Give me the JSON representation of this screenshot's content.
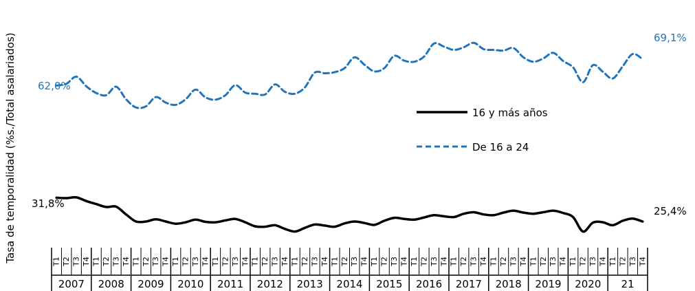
{
  "chart_data": {
    "type": "line",
    "ylabel": "Tasa de temporalidad (%s./Total asalariados)",
    "quarter_labels": [
      "T1",
      "T2",
      "T3",
      "T4"
    ],
    "years": [
      "2007",
      "2008",
      "2009",
      "2010",
      "2011",
      "2012",
      "2013",
      "2014",
      "2015",
      "2016",
      "2017",
      "2018",
      "2019",
      "2020",
      "21"
    ],
    "ylim": [
      0,
      90
    ],
    "grid": false,
    "legend_position": "right-middle",
    "series": [
      {
        "name": "16 y más años",
        "color": "#000000",
        "style": "solid",
        "start_label": "31,8%",
        "end_label": "25,4%",
        "values": [
          31.8,
          31.7,
          31.9,
          30.9,
          30.1,
          29.3,
          29.4,
          27.3,
          25.4,
          25.4,
          26.0,
          25.4,
          24.8,
          25.2,
          25.9,
          25.3,
          25.2,
          25.7,
          26.1,
          25.2,
          24.1,
          24.0,
          24.4,
          23.4,
          22.7,
          23.7,
          24.6,
          24.3,
          24.0,
          24.9,
          25.4,
          25.0,
          24.5,
          25.6,
          26.4,
          26.1,
          25.9,
          26.5,
          27.1,
          26.8,
          26.6,
          27.5,
          27.9,
          27.3,
          27.1,
          27.8,
          28.3,
          27.8,
          27.5,
          27.9,
          28.3,
          27.7,
          26.6,
          22.7,
          25.1,
          25.2,
          24.4,
          25.6,
          26.2,
          25.4
        ]
      },
      {
        "name": "De 16 a 24",
        "color": "#1f75bd",
        "style": "dashed",
        "start_label": "62,0%",
        "end_label": "69,1%",
        "values": [
          62.0,
          62.5,
          64.4,
          61.8,
          60.0,
          59.4,
          61.7,
          58.3,
          56.1,
          56.4,
          58.9,
          57.4,
          56.8,
          58.3,
          60.9,
          58.8,
          58.2,
          59.4,
          62.1,
          60.1,
          59.8,
          59.6,
          62.3,
          60.3,
          59.8,
          61.5,
          65.5,
          65.3,
          65.6,
          66.7,
          69.6,
          67.6,
          65.8,
          66.7,
          70.0,
          68.7,
          68.4,
          69.8,
          73.3,
          72.5,
          71.6,
          72.3,
          73.5,
          71.8,
          71.6,
          71.4,
          72.1,
          69.6,
          68.4,
          69.3,
          70.8,
          68.6,
          66.9,
          62.9,
          67.5,
          65.7,
          63.9,
          67.2,
          70.5,
          69.1
        ]
      }
    ]
  }
}
